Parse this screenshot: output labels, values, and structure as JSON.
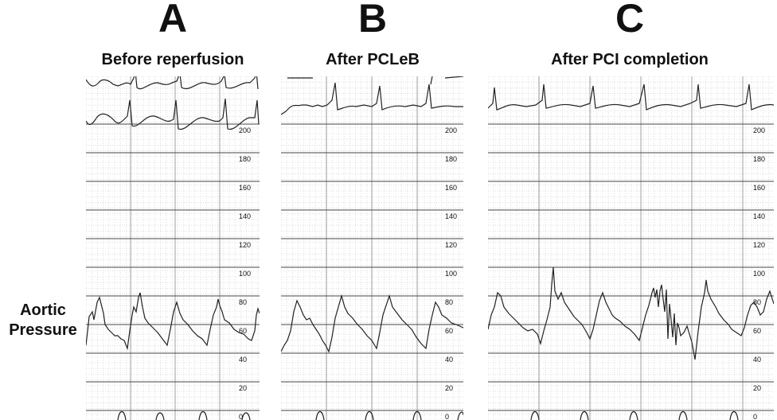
{
  "panels": [
    {
      "letter": "A",
      "title": "Before reperfusion"
    },
    {
      "letter": "B",
      "title": "After PCLeB"
    },
    {
      "letter": "C",
      "title": "After PCI completion"
    }
  ],
  "side_label": {
    "line1": "Aortic",
    "line2": "Pressure"
  },
  "scale_ticks": [
    "200",
    "180",
    "160",
    "140",
    "120",
    "100",
    "80",
    "60",
    "40",
    "20",
    "0"
  ],
  "colors": {
    "trace": "#222222",
    "grid_major": "#444444",
    "grid_minor": "#c8c8c8"
  }
}
